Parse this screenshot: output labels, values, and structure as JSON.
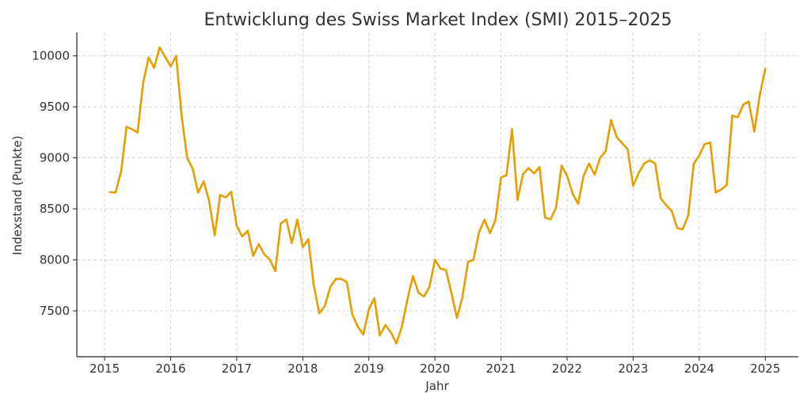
{
  "chart_data": {
    "type": "line",
    "title": "Entwicklung des Swiss Market Index (SMI) 2015–2025",
    "xlabel": "Jahr",
    "ylabel": "Indexstand (Punkte)",
    "xlim": [
      2014.58,
      2025.5
    ],
    "ylim": [
      7050,
      10230
    ],
    "grid": true,
    "x_ticks": [
      2015,
      2016,
      2017,
      2018,
      2019,
      2020,
      2021,
      2022,
      2023,
      2024,
      2025
    ],
    "x_tick_labels": [
      "2015",
      "2016",
      "2017",
      "2018",
      "2019",
      "2020",
      "2021",
      "2022",
      "2023",
      "2024",
      "2025"
    ],
    "y_ticks": [
      7500,
      8000,
      8500,
      9000,
      9500,
      10000
    ],
    "y_tick_labels": [
      "7500",
      "8000",
      "8500",
      "9000",
      "9500",
      "10000"
    ],
    "series": [
      {
        "name": "SMI",
        "color": "#E69F00",
        "x_start": 2015.0833,
        "x_step_months": 1,
        "values": [
          8663,
          8660,
          8865,
          9305,
          9280,
          9249,
          9733,
          9985,
          9882,
          10083,
          9990,
          9897,
          10000,
          9407,
          9000,
          8893,
          8660,
          8770,
          8575,
          8240,
          8635,
          8612,
          8667,
          8333,
          8230,
          8285,
          8040,
          8155,
          8055,
          8005,
          7890,
          8357,
          8395,
          8163,
          8395,
          8125,
          8203,
          7750,
          7477,
          7547,
          7735,
          7813,
          7813,
          7782,
          7463,
          7345,
          7267,
          7515,
          7625,
          7260,
          7360,
          7290,
          7180,
          7345,
          7610,
          7840,
          7680,
          7640,
          7735,
          8000,
          7915,
          7900,
          7675,
          7430,
          7635,
          7980,
          8000,
          8270,
          8393,
          8263,
          8390,
          8808,
          8830,
          9281,
          8589,
          8840,
          8900,
          8848,
          8910,
          8413,
          8397,
          8513,
          8925,
          8825,
          8650,
          8550,
          8825,
          8945,
          8835,
          9000,
          9065,
          9370,
          9205,
          9145,
          9085,
          8725,
          8850,
          8945,
          8975,
          8947,
          8605,
          8535,
          8480,
          8310,
          8300,
          8435,
          8940,
          9025,
          9135,
          9150,
          8660,
          8690,
          8735,
          9413,
          9398,
          9522,
          9553,
          9258,
          9615,
          9873
        ]
      }
    ]
  }
}
